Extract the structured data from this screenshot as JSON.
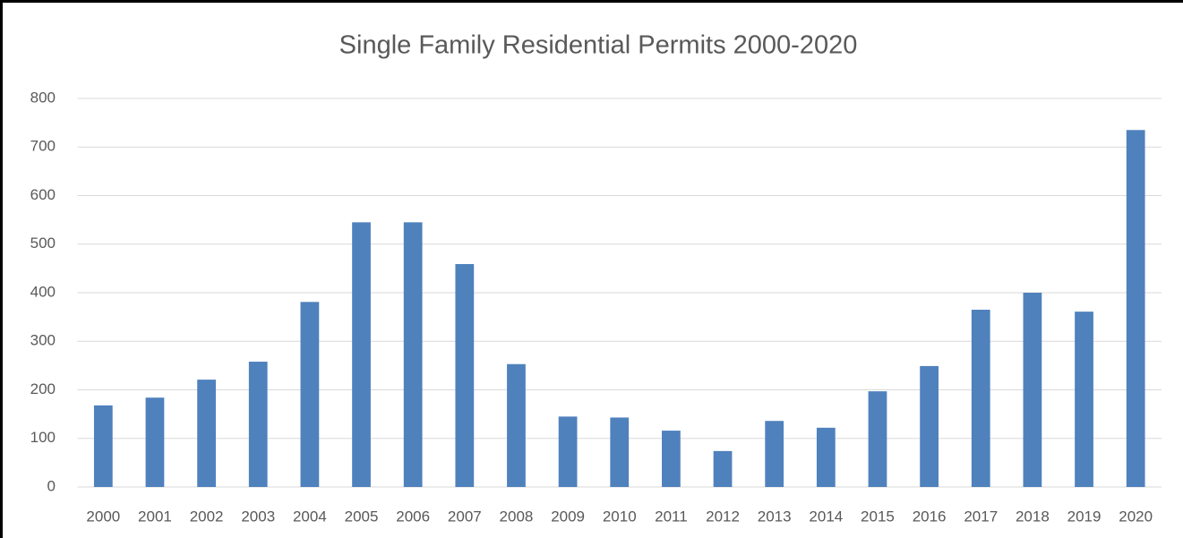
{
  "chart_data": {
    "type": "bar",
    "title": "Single Family Residential Permits 2000-2020",
    "categories": [
      "2000",
      "2001",
      "2002",
      "2003",
      "2004",
      "2005",
      "2006",
      "2007",
      "2008",
      "2009",
      "2010",
      "2011",
      "2012",
      "2013",
      "2014",
      "2015",
      "2016",
      "2017",
      "2018",
      "2019",
      "2020"
    ],
    "values": [
      168,
      184,
      221,
      258,
      381,
      545,
      545,
      459,
      253,
      145,
      143,
      116,
      74,
      136,
      122,
      197,
      249,
      365,
      400,
      361,
      735
    ],
    "color": "#4f81bd",
    "ylim": [
      0,
      800
    ],
    "yticks": [
      0,
      100,
      200,
      300,
      400,
      500,
      600,
      700,
      800
    ],
    "grid": true
  }
}
